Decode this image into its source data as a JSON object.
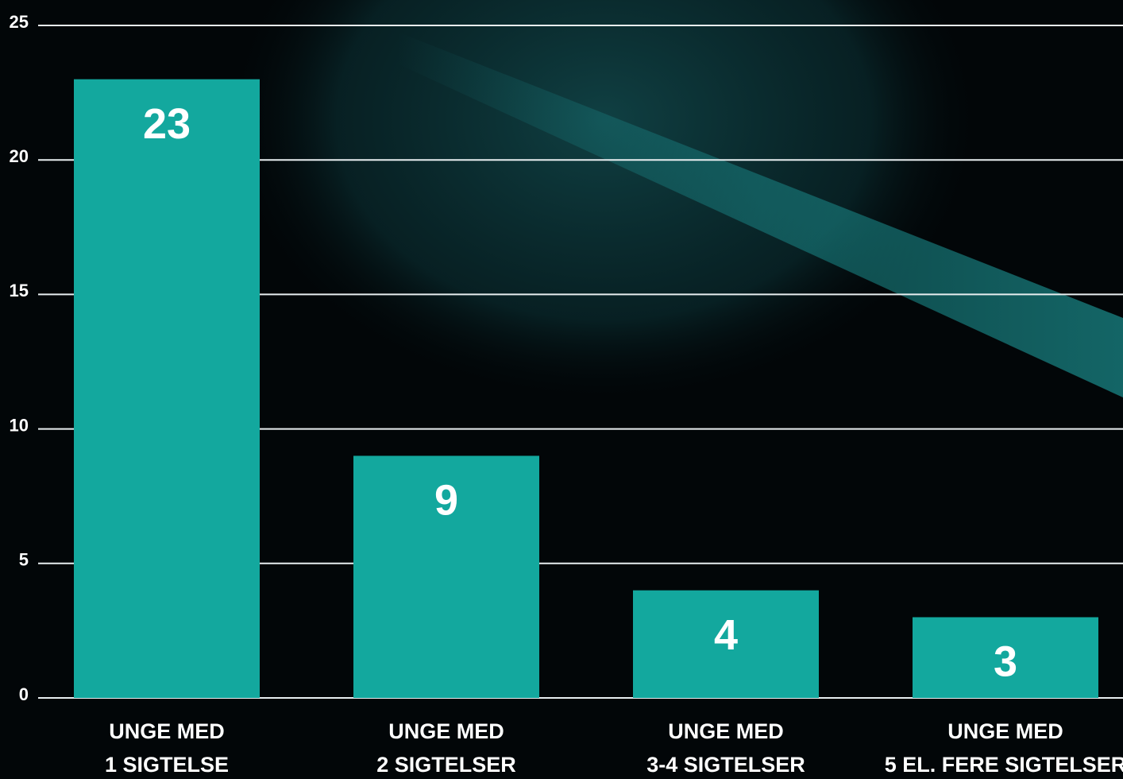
{
  "chart_data": {
    "type": "bar",
    "categories": [
      [
        "UNGE MED",
        "1 SIGTELSE"
      ],
      [
        "UNGE MED",
        "2 SIGTELSER"
      ],
      [
        "UNGE MED",
        "3-4 SIGTELSER"
      ],
      [
        "UNGE MED",
        "5 EL. FERE SIGTELSER"
      ]
    ],
    "values": [
      23,
      9,
      4,
      3
    ],
    "color": "#13a89e",
    "ylim": [
      0,
      25
    ],
    "yticks": [
      0,
      5,
      10,
      15,
      20,
      25
    ],
    "grid": true
  }
}
